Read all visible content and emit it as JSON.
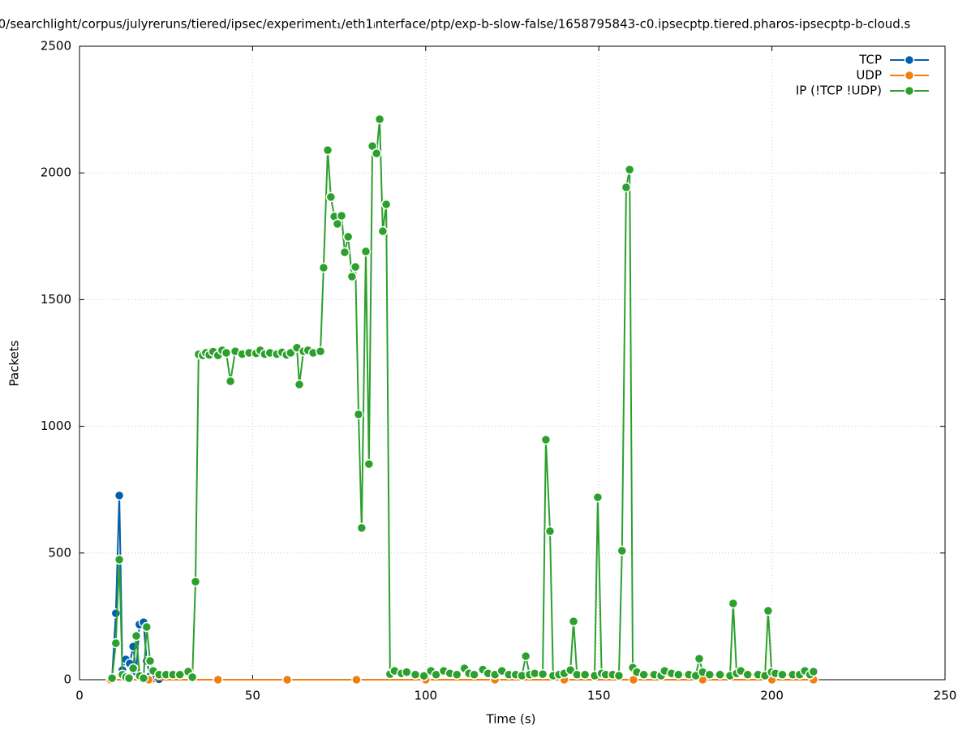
{
  "chart_data": {
    "type": "line",
    "title": "0/searchlight/corpus/julyreruns/tiered/ipsec/experiment₁/eth1ᵢnterface/ptp/exp-b-slow-false/1658795843-c0.ipsecptp.tiered.pharos-ipsecptp-b-cloud.s",
    "x_label": "Time (s)",
    "y_label": "Packets",
    "xlim": [
      0,
      250
    ],
    "xticks": [
      0,
      50,
      100,
      150,
      200,
      250
    ],
    "ylim": [
      0,
      2500
    ],
    "yticks": [
      0,
      500,
      1000,
      1500,
      2000,
      2500
    ],
    "grid": true,
    "legend": "top-right",
    "series": [
      {
        "name": "TCP",
        "color": "#0060ad",
        "x": [
          9.4,
          10.5,
          11.5,
          12.4,
          13.4,
          14.5,
          15.5,
          16.4,
          17.3,
          18.5,
          19.4,
          20.4,
          21.3,
          23
        ],
        "values": [
          6,
          262,
          727,
          38,
          80,
          64,
          131,
          30,
          218,
          227,
          74,
          15,
          5,
          2
        ]
      },
      {
        "name": "UDP",
        "color": "#f07f0e",
        "x": [
          9,
          20,
          40,
          60,
          80,
          100,
          120,
          140,
          160,
          180,
          200,
          212
        ],
        "values": [
          0,
          0,
          0,
          0,
          0,
          0,
          0,
          0,
          0,
          0,
          0,
          0
        ]
      },
      {
        "name": "IP (!TCP  !UDP)",
        "color": "#2ca02c",
        "x": [
          9.4,
          10.5,
          11.5,
          12.4,
          13.4,
          14.3,
          15.5,
          16.4,
          17.4,
          18.5,
          19.4,
          20.4,
          21.3,
          23,
          25,
          27,
          29,
          31.4,
          32.6,
          33.5,
          34.4,
          35.6,
          36.5,
          37.5,
          38.6,
          40,
          41.2,
          42.4,
          43.6,
          45,
          47,
          49,
          51,
          52.2,
          53.5,
          55,
          57,
          58.5,
          59.8,
          61,
          62.8,
          63.5,
          64.7,
          66,
          67.5,
          69.6,
          70.5,
          71.7,
          72.6,
          73.6,
          74.5,
          75.7,
          76.6,
          77.6,
          78.7,
          79.7,
          80.6,
          81.5,
          82.7,
          83.6,
          84.6,
          85.8,
          86.7,
          87.6,
          88.6,
          89.7,
          91,
          93,
          94.5,
          97,
          99.5,
          101.5,
          103,
          105.2,
          107,
          109,
          111.2,
          112.5,
          114,
          116.5,
          118,
          120,
          122,
          124,
          126,
          127.8,
          128.9,
          130,
          131.5,
          133.8,
          134.7,
          135.9,
          136.8,
          138.5,
          140,
          141.8,
          142.7,
          143.7,
          146,
          148.8,
          149.7,
          150.8,
          152,
          154,
          155.8,
          156.7,
          157.9,
          158.9,
          159.8,
          161,
          163,
          166,
          168,
          169,
          171,
          173,
          176,
          178,
          179,
          180,
          182,
          185,
          187.9,
          188.8,
          189.8,
          191,
          193,
          196,
          198,
          198.9,
          199.9,
          201,
          203,
          206,
          208,
          209.5,
          211,
          212
        ],
        "values": [
          6,
          144,
          474,
          20,
          10,
          6,
          45,
          173,
          15,
          6,
          208,
          74,
          35,
          20,
          20,
          20,
          20,
          32,
          10,
          387,
          1284,
          1280,
          1290,
          1282,
          1295,
          1280,
          1300,
          1290,
          1178,
          1296,
          1285,
          1290,
          1288,
          1300,
          1285,
          1290,
          1285,
          1292,
          1282,
          1290,
          1310,
          1165,
          1296,
          1300,
          1290,
          1296,
          1626,
          2090,
          1905,
          1828,
          1799,
          1831,
          1687,
          1748,
          1591,
          1629,
          1047,
          599,
          1690,
          851,
          2106,
          2077,
          2212,
          1770,
          1876,
          22,
          35,
          25,
          30,
          20,
          15,
          35,
          20,
          35,
          25,
          20,
          45,
          25,
          20,
          40,
          25,
          20,
          35,
          20,
          20,
          16,
          93,
          20,
          25,
          22,
          947,
          586,
          16,
          20,
          25,
          38,
          230,
          20,
          20,
          16,
          720,
          25,
          20,
          20,
          16,
          509,
          1943,
          2013,
          48,
          30,
          20,
          20,
          16,
          35,
          25,
          20,
          20,
          16,
          83,
          30,
          20,
          20,
          16,
          301,
          25,
          35,
          20,
          20,
          16,
          272,
          30,
          25,
          20,
          20,
          20,
          35,
          20,
          32
        ]
      }
    ]
  }
}
